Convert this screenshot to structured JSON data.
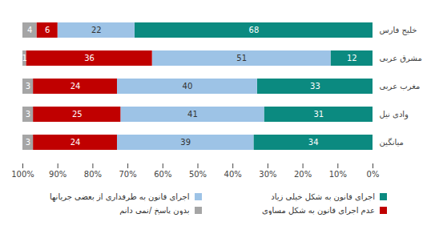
{
  "chart_data": {
    "type": "bar",
    "orientation": "horizontal",
    "stacked": true,
    "data_labels": true,
    "grid": false,
    "legend": "bottom",
    "categories": [
      "خلیج فارس",
      "مشرق عربی",
      "مغرب عربی",
      "وادی نیل",
      "میانگین"
    ],
    "series": [
      {
        "name": "اجرای قانون به شکل خیلی زیاد",
        "color": "#0b8a80",
        "values": [
          68,
          12,
          33,
          31,
          34
        ]
      },
      {
        "name": "اجرای قانون به طرفداری از بعضی جریانها",
        "color": "#9dc3e6",
        "values": [
          22,
          51,
          40,
          41,
          39
        ]
      },
      {
        "name": "عدم اجرای قانون به شکل مساوی",
        "color": "#c00000",
        "values": [
          6,
          36,
          24,
          25,
          24
        ]
      },
      {
        "name": "بدون پاسخ /نمی دانم",
        "color": "#a5a5a5",
        "values": [
          4,
          1,
          3,
          3,
          3
        ]
      }
    ],
    "xlim": [
      0,
      100
    ],
    "xticks": [
      {
        "value": 0,
        "label": "0%"
      },
      {
        "value": 10,
        "label": "10%"
      },
      {
        "value": 20,
        "label": "20%"
      },
      {
        "value": 30,
        "label": "30%"
      },
      {
        "value": 40,
        "label": "40%"
      },
      {
        "value": 50,
        "label": "50%"
      },
      {
        "value": 60,
        "label": "60%"
      },
      {
        "value": 70,
        "label": "70%"
      },
      {
        "value": 80,
        "label": "80%"
      },
      {
        "value": 90,
        "label": "90%"
      },
      {
        "value": 100,
        "label": "100%"
      }
    ]
  }
}
